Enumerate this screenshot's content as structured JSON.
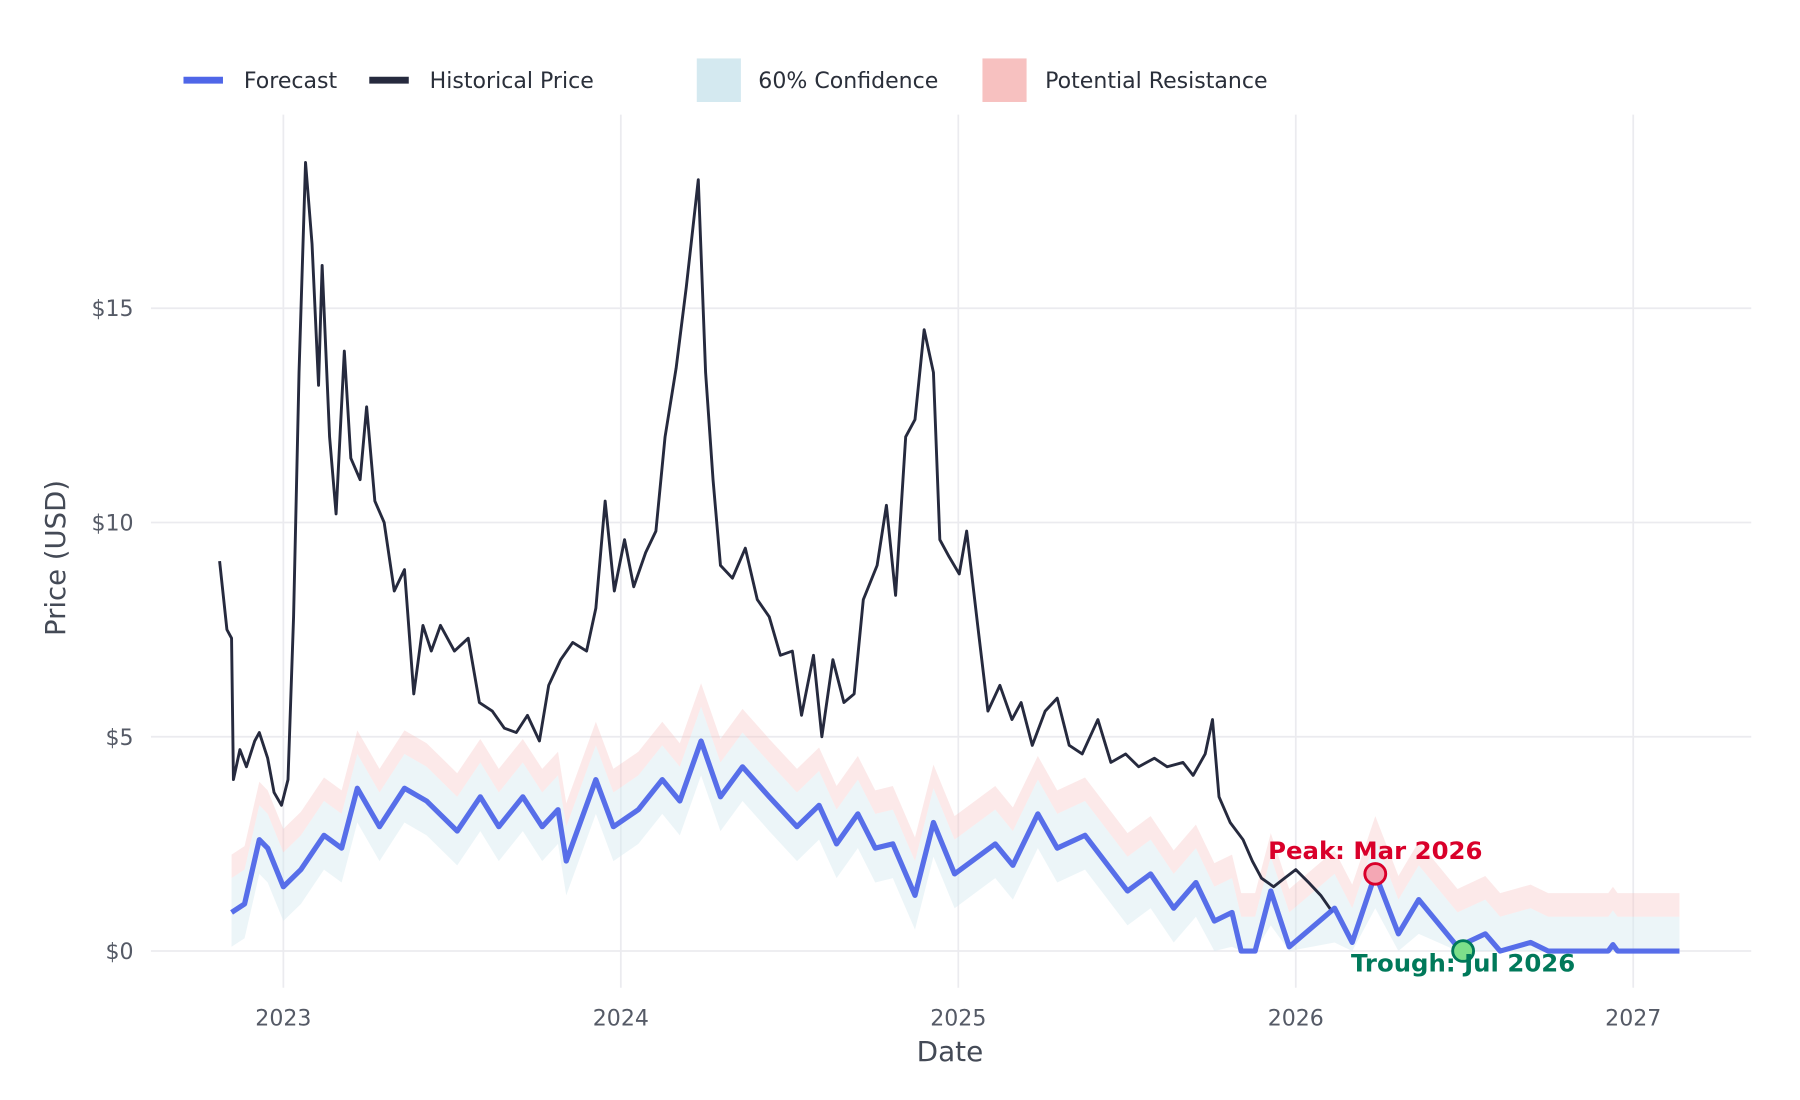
{
  "chart_data": {
    "type": "line",
    "title": "",
    "xlabel": "Date",
    "ylabel": "Price (USD)",
    "x_ticks": [
      "2023",
      "2024",
      "2025",
      "2026",
      "2027"
    ],
    "y_ticks": [
      "$0",
      "$5",
      "$10",
      "$15"
    ],
    "y_tick_values": [
      0,
      5,
      10,
      15
    ],
    "xlim": [
      "2022-08-10",
      "2027-05-15"
    ],
    "ylim": [
      -0.8,
      19
    ],
    "grid": true,
    "legend_position": "top",
    "legend": {
      "forecast": "Forecast",
      "historical": "Historical Price",
      "confidence": "60% Confidence",
      "resistance": "Potential Resistance"
    },
    "colors": {
      "forecast": "#4f66e8",
      "historical": "#262a3e",
      "confidence": "#d4e9f0",
      "resistance": "#f7c1c0",
      "peak": "#d9002a",
      "trough": "#00795a",
      "grid": "#ebebef"
    },
    "confidence_halfwidth": 0.8,
    "resistance_offset": 1.35,
    "series": [
      {
        "name": "Historical Price",
        "points": [
          [
            "2022-10-24",
            9.1
          ],
          [
            "2022-11-01",
            7.5
          ],
          [
            "2022-11-06",
            7.3
          ],
          [
            "2022-11-08",
            4.0
          ],
          [
            "2022-11-15",
            4.7
          ],
          [
            "2022-11-22",
            4.3
          ],
          [
            "2022-12-01",
            4.9
          ],
          [
            "2022-12-06",
            5.1
          ],
          [
            "2022-12-15",
            4.5
          ],
          [
            "2022-12-22",
            3.7
          ],
          [
            "2022-12-30",
            3.4
          ],
          [
            "2023-01-06",
            4.0
          ],
          [
            "2023-01-12",
            7.8
          ],
          [
            "2023-01-18",
            13.5
          ],
          [
            "2023-01-25",
            18.4
          ],
          [
            "2023-02-01",
            16.5
          ],
          [
            "2023-02-08",
            13.2
          ],
          [
            "2023-02-12",
            16.0
          ],
          [
            "2023-02-20",
            12.0
          ],
          [
            "2023-02-27",
            10.2
          ],
          [
            "2023-03-08",
            14.0
          ],
          [
            "2023-03-15",
            11.5
          ],
          [
            "2023-03-25",
            11.0
          ],
          [
            "2023-04-01",
            12.7
          ],
          [
            "2023-04-10",
            10.5
          ],
          [
            "2023-04-20",
            10.0
          ],
          [
            "2023-05-01",
            8.4
          ],
          [
            "2023-05-12",
            8.9
          ],
          [
            "2023-05-22",
            6.0
          ],
          [
            "2023-06-01",
            7.6
          ],
          [
            "2023-06-10",
            7.0
          ],
          [
            "2023-06-20",
            7.6
          ],
          [
            "2023-07-05",
            7.0
          ],
          [
            "2023-07-20",
            7.3
          ],
          [
            "2023-08-01",
            5.8
          ],
          [
            "2023-08-15",
            5.6
          ],
          [
            "2023-08-28",
            5.2
          ],
          [
            "2023-09-10",
            5.1
          ],
          [
            "2023-09-22",
            5.5
          ],
          [
            "2023-10-05",
            4.9
          ],
          [
            "2023-10-15",
            6.2
          ],
          [
            "2023-10-28",
            6.8
          ],
          [
            "2023-11-10",
            7.2
          ],
          [
            "2023-11-25",
            7.0
          ],
          [
            "2023-12-05",
            8.0
          ],
          [
            "2023-12-15",
            10.5
          ],
          [
            "2023-12-25",
            8.4
          ],
          [
            "2024-01-05",
            9.6
          ],
          [
            "2024-01-15",
            8.5
          ],
          [
            "2024-01-28",
            9.3
          ],
          [
            "2024-02-08",
            9.8
          ],
          [
            "2024-02-18",
            12.0
          ],
          [
            "2024-03-01",
            13.6
          ],
          [
            "2024-03-12",
            15.5
          ],
          [
            "2024-03-25",
            18.0
          ],
          [
            "2024-04-02",
            13.5
          ],
          [
            "2024-04-10",
            11.0
          ],
          [
            "2024-04-18",
            9.0
          ],
          [
            "2024-05-01",
            8.7
          ],
          [
            "2024-05-15",
            9.4
          ],
          [
            "2024-05-28",
            8.2
          ],
          [
            "2024-06-10",
            7.8
          ],
          [
            "2024-06-22",
            6.9
          ],
          [
            "2024-07-05",
            7.0
          ],
          [
            "2024-07-15",
            5.5
          ],
          [
            "2024-07-28",
            6.9
          ],
          [
            "2024-08-06",
            5.0
          ],
          [
            "2024-08-18",
            6.8
          ],
          [
            "2024-08-30",
            5.8
          ],
          [
            "2024-09-10",
            6.0
          ],
          [
            "2024-09-20",
            8.2
          ],
          [
            "2024-10-05",
            9.0
          ],
          [
            "2024-10-15",
            10.4
          ],
          [
            "2024-10-25",
            8.3
          ],
          [
            "2024-11-05",
            12.0
          ],
          [
            "2024-11-15",
            12.4
          ],
          [
            "2024-11-25",
            14.5
          ],
          [
            "2024-12-05",
            13.5
          ],
          [
            "2024-12-12",
            9.6
          ],
          [
            "2024-12-22",
            9.2
          ],
          [
            "2025-01-02",
            8.8
          ],
          [
            "2025-01-10",
            9.8
          ],
          [
            "2025-01-22",
            7.6
          ],
          [
            "2025-02-02",
            5.6
          ],
          [
            "2025-02-15",
            6.2
          ],
          [
            "2025-02-28",
            5.4
          ],
          [
            "2025-03-10",
            5.8
          ],
          [
            "2025-03-22",
            4.8
          ],
          [
            "2025-04-05",
            5.6
          ],
          [
            "2025-04-18",
            5.9
          ],
          [
            "2025-05-01",
            4.8
          ],
          [
            "2025-05-15",
            4.6
          ],
          [
            "2025-06-01",
            5.4
          ],
          [
            "2025-06-15",
            4.4
          ],
          [
            "2025-07-01",
            4.6
          ],
          [
            "2025-07-15",
            4.3
          ],
          [
            "2025-08-01",
            4.5
          ],
          [
            "2025-08-15",
            4.3
          ],
          [
            "2025-09-01",
            4.4
          ],
          [
            "2025-09-12",
            4.1
          ],
          [
            "2025-09-25",
            4.6
          ],
          [
            "2025-10-03",
            5.4
          ],
          [
            "2025-10-10",
            3.6
          ],
          [
            "2025-10-22",
            3.0
          ],
          [
            "2025-11-05",
            2.6
          ],
          [
            "2025-11-15",
            2.1
          ],
          [
            "2025-11-25",
            1.7
          ],
          [
            "2025-12-08",
            1.5
          ],
          [
            "2025-12-20",
            1.7
          ],
          [
            "2026-01-01",
            1.9
          ],
          [
            "2026-01-15",
            1.6
          ],
          [
            "2026-01-28",
            1.3
          ],
          [
            "2026-02-10",
            0.9
          ]
        ]
      },
      {
        "name": "Forecast",
        "points": [
          [
            "2022-11-06",
            0.9
          ],
          [
            "2022-11-20",
            1.1
          ],
          [
            "2022-12-06",
            2.6
          ],
          [
            "2022-12-15",
            2.4
          ],
          [
            "2023-01-01",
            1.5
          ],
          [
            "2023-01-20",
            1.9
          ],
          [
            "2023-02-14",
            2.7
          ],
          [
            "2023-03-05",
            2.4
          ],
          [
            "2023-03-22",
            3.8
          ],
          [
            "2023-04-15",
            2.9
          ],
          [
            "2023-05-12",
            3.8
          ],
          [
            "2023-06-05",
            3.5
          ],
          [
            "2023-07-08",
            2.8
          ],
          [
            "2023-08-02",
            3.6
          ],
          [
            "2023-08-22",
            2.9
          ],
          [
            "2023-09-17",
            3.6
          ],
          [
            "2023-10-08",
            2.9
          ],
          [
            "2023-10-25",
            3.3
          ],
          [
            "2023-11-03",
            2.1
          ],
          [
            "2023-12-05",
            4.0
          ],
          [
            "2023-12-24",
            2.9
          ],
          [
            "2024-01-20",
            3.3
          ],
          [
            "2024-02-15",
            4.0
          ],
          [
            "2024-03-05",
            3.5
          ],
          [
            "2024-03-28",
            4.9
          ],
          [
            "2024-04-18",
            3.6
          ],
          [
            "2024-05-12",
            4.3
          ],
          [
            "2024-06-10",
            3.6
          ],
          [
            "2024-07-10",
            2.9
          ],
          [
            "2024-08-03",
            3.4
          ],
          [
            "2024-08-22",
            2.5
          ],
          [
            "2024-09-14",
            3.2
          ],
          [
            "2024-10-03",
            2.4
          ],
          [
            "2024-10-22",
            2.5
          ],
          [
            "2024-11-15",
            1.3
          ],
          [
            "2024-12-05",
            3.0
          ],
          [
            "2024-12-28",
            1.8
          ],
          [
            "2025-02-10",
            2.5
          ],
          [
            "2025-03-01",
            2.0
          ],
          [
            "2025-03-28",
            3.2
          ],
          [
            "2025-04-18",
            2.4
          ],
          [
            "2025-05-18",
            2.7
          ],
          [
            "2025-07-03",
            1.4
          ],
          [
            "2025-07-28",
            1.8
          ],
          [
            "2025-08-22",
            1.0
          ],
          [
            "2025-09-15",
            1.6
          ],
          [
            "2025-10-05",
            0.7
          ],
          [
            "2025-10-24",
            0.9
          ],
          [
            "2025-11-03",
            0.0
          ],
          [
            "2025-11-18",
            0.0
          ],
          [
            "2025-12-05",
            1.4
          ],
          [
            "2025-12-25",
            0.1
          ],
          [
            "2026-02-12",
            1.0
          ],
          [
            "2026-03-03",
            0.2
          ],
          [
            "2026-03-28",
            1.8
          ],
          [
            "2026-04-22",
            0.4
          ],
          [
            "2026-05-14",
            1.2
          ],
          [
            "2026-06-25",
            0.1
          ],
          [
            "2026-07-25",
            0.4
          ],
          [
            "2026-08-10",
            0.0
          ],
          [
            "2026-09-12",
            0.2
          ],
          [
            "2026-10-01",
            0.0
          ],
          [
            "2026-12-05",
            0.0
          ],
          [
            "2026-12-10",
            0.15
          ],
          [
            "2026-12-15",
            0.0
          ],
          [
            "2027-02-20",
            0.0
          ]
        ]
      }
    ],
    "annotations": [
      {
        "text": "Peak: Mar 2026",
        "date": "2026-03-28",
        "value": 1.8,
        "kind": "peak"
      },
      {
        "text": "Trough: Jul 2026",
        "date": "2026-07-01",
        "value": 0.0,
        "kind": "trough"
      }
    ]
  }
}
